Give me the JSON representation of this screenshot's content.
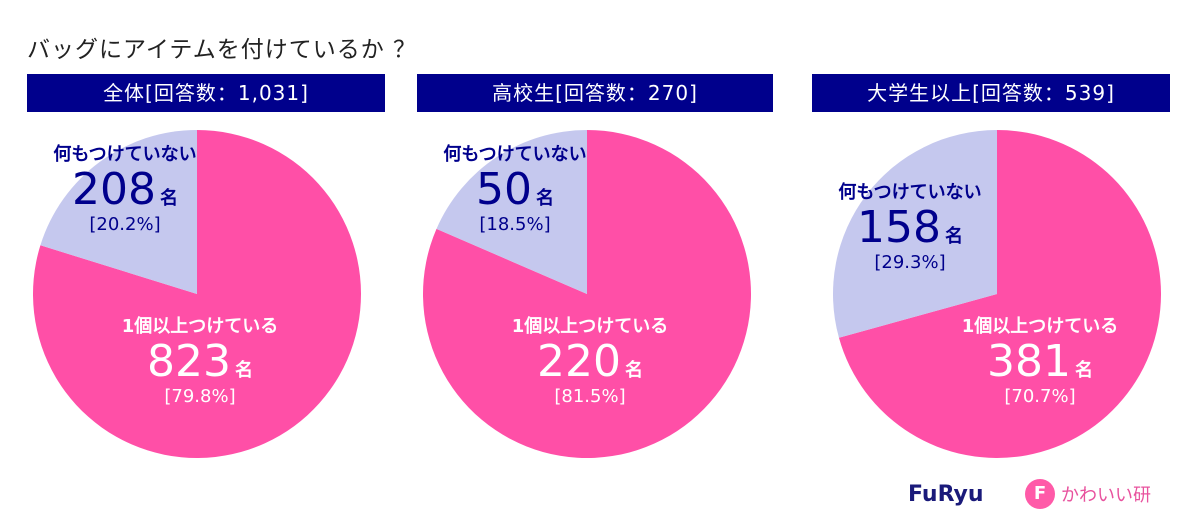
{
  "title": "バッグにアイテムを付けているか ？",
  "colors": {
    "attached": "#ff4fa7",
    "none": "#c5c8ee",
    "header": "#00008c"
  },
  "chart_data": [
    {
      "type": "pie",
      "title": "全体[回答数：1,031]",
      "slices": [
        {
          "label": "1個以上つけている",
          "count": "823",
          "unit": "名",
          "percent_label": "[79.8%]",
          "value": 79.8
        },
        {
          "label": "何もつけていない",
          "count": "208",
          "unit": "名",
          "percent_label": "[20.2%]",
          "value": 20.2
        }
      ]
    },
    {
      "type": "pie",
      "title": "高校生[回答数：270]",
      "slices": [
        {
          "label": "1個以上つけている",
          "count": "220",
          "unit": "名",
          "percent_label": "[81.5%]",
          "value": 81.5
        },
        {
          "label": "何もつけていない",
          "count": "50",
          "unit": "名",
          "percent_label": "[18.5%]",
          "value": 18.5
        }
      ]
    },
    {
      "type": "pie",
      "title": "大学生以上[回答数：539]",
      "slices": [
        {
          "label": "1個以上つけている",
          "count": "381",
          "unit": "名",
          "percent_label": "[70.7%]",
          "value": 70.7
        },
        {
          "label": "何もつけていない",
          "count": "158",
          "unit": "名",
          "percent_label": "[29.3%]",
          "value": 29.3
        }
      ]
    }
  ],
  "logos": {
    "furyu": "FuRyu",
    "kawaii_f": "F",
    "kawaii": "かわいい研"
  }
}
